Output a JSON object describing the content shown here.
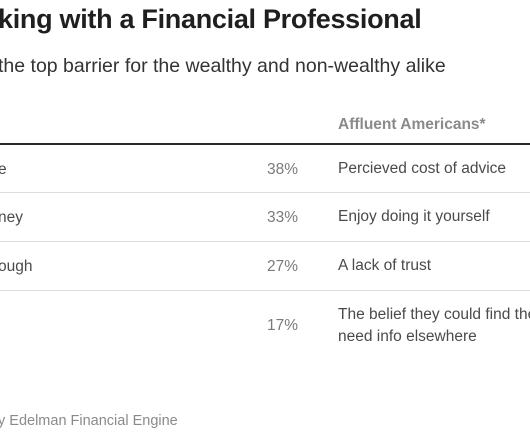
{
  "title": "king with a Financial Professional",
  "subtitle": "the top barrier for the wealthy and non-wealthy alike",
  "table": {
    "column_header": "Affluent Americans*",
    "rows": [
      {
        "label": "e",
        "percent": "38%",
        "reason_line1": "Percieved cost of advice",
        "reason_line2": ""
      },
      {
        "label": "ney",
        "percent": "33%",
        "reason_line1": "Enjoy doing it yourself",
        "reason_line2": ""
      },
      {
        "label": "ough",
        "percent": "27%",
        "reason_line1": "A lack of trust",
        "reason_line2": ""
      },
      {
        "label": "",
        "percent": "17%",
        "reason_line1": "The belief they could find the",
        "reason_line2": "need info elsewhere"
      }
    ]
  },
  "source": "y Edelman Financial Engine"
}
